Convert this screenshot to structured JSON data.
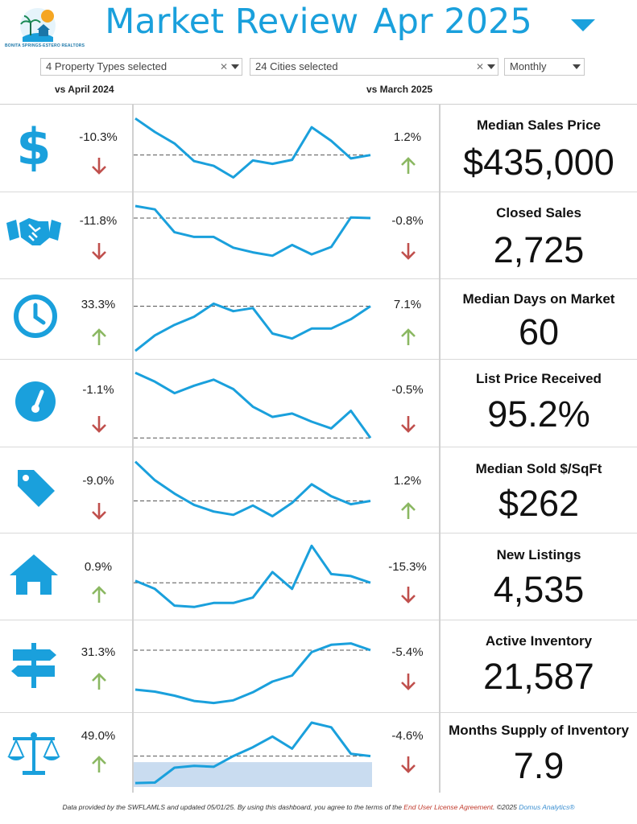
{
  "logo": {
    "text": "BONITA SPRINGS-ESTERO REALTORS"
  },
  "header": {
    "title_part1": "Market Review",
    "title_part2": "Apr 2025"
  },
  "filters": {
    "property_types": "4 Property Types selected",
    "cities": "24 Cities selected",
    "period": "Monthly"
  },
  "compare": {
    "left": "vs April 2024",
    "right": "vs March 2025"
  },
  "colors": {
    "accent": "#1aa0dc",
    "up": "#8bb862",
    "down": "#c0504d",
    "band": "#c9dcf0"
  },
  "metrics": [
    {
      "label": "Median Sales Price",
      "value": "$435,000",
      "yoy": "-10.3%",
      "yoy_dir": "down",
      "mom": "1.2%",
      "mom_dir": "up",
      "icon": "dollar-icon",
      "trend": [
        0.95,
        0.75,
        0.58,
        0.32,
        0.25,
        0.08,
        0.33,
        0.28,
        0.34,
        0.82,
        0.62,
        0.36,
        0.41
      ]
    },
    {
      "label": "Closed Sales",
      "value": "2,725",
      "yoy": "-11.8%",
      "yoy_dir": "down",
      "mom": "-0.8%",
      "mom_dir": "down",
      "icon": "handshake-icon",
      "trend": [
        0.95,
        0.9,
        0.56,
        0.49,
        0.49,
        0.33,
        0.26,
        0.21,
        0.37,
        0.23,
        0.34,
        0.78,
        0.77
      ]
    },
    {
      "label": "Median Days on Market",
      "value": "60",
      "yoy": "33.3%",
      "yoy_dir": "up",
      "mom": "7.1%",
      "mom_dir": "up",
      "icon": "clock-icon",
      "trend": [
        0.0,
        0.25,
        0.42,
        0.55,
        0.76,
        0.64,
        0.69,
        0.28,
        0.2,
        0.36,
        0.36,
        0.51,
        0.72
      ]
    },
    {
      "label": "List Price Received",
      "value": "95.2%",
      "yoy": "-1.1%",
      "yoy_dir": "down",
      "mom": "-0.5%",
      "mom_dir": "down",
      "icon": "gauge-icon",
      "trend": [
        0.96,
        0.83,
        0.66,
        0.77,
        0.86,
        0.72,
        0.46,
        0.31,
        0.36,
        0.24,
        0.14,
        0.4,
        0.0
      ]
    },
    {
      "label": "Median Sold $/SqFt",
      "value": "$262",
      "yoy": "-9.0%",
      "yoy_dir": "down",
      "mom": "1.2%",
      "mom_dir": "up",
      "icon": "price-tag-icon",
      "trend": [
        0.94,
        0.66,
        0.46,
        0.29,
        0.19,
        0.14,
        0.28,
        0.12,
        0.32,
        0.6,
        0.42,
        0.3,
        0.35
      ]
    },
    {
      "label": "New Listings",
      "value": "4,535",
      "yoy": "0.9%",
      "yoy_dir": "up",
      "mom": "-15.3%",
      "mom_dir": "down",
      "icon": "house-icon",
      "trend": [
        0.45,
        0.33,
        0.08,
        0.06,
        0.12,
        0.12,
        0.2,
        0.58,
        0.33,
        0.97,
        0.55,
        0.52,
        0.42
      ]
    },
    {
      "label": "Active Inventory",
      "value": "21,587",
      "yoy": "31.3%",
      "yoy_dir": "up",
      "mom": "-5.4%",
      "mom_dir": "down",
      "icon": "signpost-icon",
      "trend": [
        0.13,
        0.1,
        0.04,
        -0.04,
        -0.07,
        -0.03,
        0.09,
        0.25,
        0.34,
        0.69,
        0.8,
        0.82,
        0.72
      ]
    },
    {
      "label": "Months Supply of Inventory",
      "value": "7.9",
      "yoy": "49.0%",
      "yoy_dir": "up",
      "mom": "-4.6%",
      "mom_dir": "down",
      "icon": "scale-icon",
      "trend": [
        0.05,
        0.06,
        0.38,
        0.42,
        0.4,
        0.63,
        0.82,
        1.05,
        0.79,
        1.35,
        1.25,
        0.68,
        0.63
      ]
    }
  ],
  "footer": {
    "text1": "Data provided by the SWFLAMLS and updated 05/01/25.  By using this dashboard, you agree to the terms of the ",
    "link1": "End User License Agreement",
    "text2": ".  ©2025 ",
    "link2": "Domus Analytics®"
  }
}
